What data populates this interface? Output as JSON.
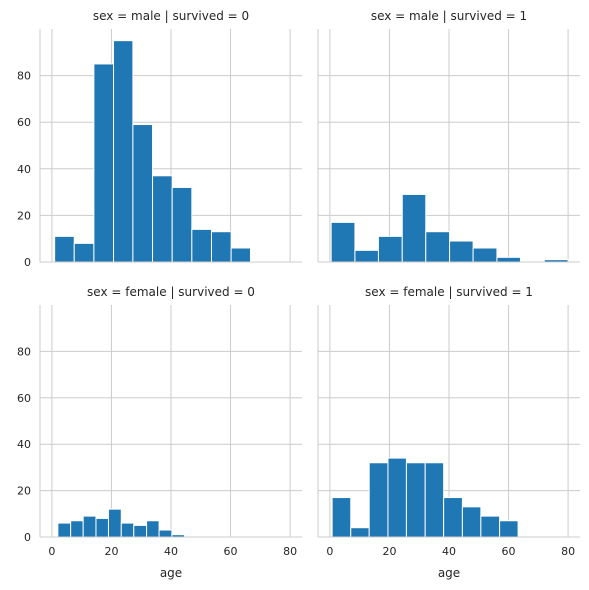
{
  "chart_data": {
    "type": "bar",
    "layout": "2x2 facet grid, shared x and y axes",
    "grid": true,
    "bar_color": "#1f77b4",
    "xlabel": "age",
    "ylabel": "",
    "xlim": [
      -4,
      84
    ],
    "ylim": [
      0,
      100
    ],
    "xticks": [
      0,
      20,
      40,
      60,
      80
    ],
    "yticks": [
      0,
      20,
      40,
      60,
      80
    ],
    "facets": [
      {
        "title": "sex = male | survived = 0",
        "bins": [
          [
            0.92,
            7.5
          ],
          [
            7.5,
            14.1
          ],
          [
            14.1,
            20.7
          ],
          [
            20.7,
            27.2
          ],
          [
            27.2,
            33.8
          ],
          [
            33.8,
            40.4
          ],
          [
            40.4,
            47.0
          ],
          [
            47.0,
            53.6
          ],
          [
            53.6,
            60.2
          ],
          [
            60.2,
            66.7
          ],
          [
            66.7,
            73.3
          ],
          [
            73.3,
            80.0
          ]
        ],
        "values": [
          11,
          8,
          85,
          95,
          59,
          37,
          32,
          14,
          13,
          6,
          0,
          0
        ]
      },
      {
        "title": "sex = male | survived = 1",
        "bins": [
          [
            0.42,
            8.4
          ],
          [
            8.4,
            16.3
          ],
          [
            16.3,
            24.3
          ],
          [
            24.3,
            32.2
          ],
          [
            32.2,
            40.2
          ],
          [
            40.2,
            48.1
          ],
          [
            48.1,
            56.1
          ],
          [
            56.1,
            64.0
          ],
          [
            64.0,
            72.0
          ],
          [
            72.0,
            80.0
          ]
        ],
        "values": [
          17,
          5,
          11,
          29,
          13,
          9,
          6,
          2,
          0,
          1
        ]
      },
      {
        "title": "sex = female | survived = 0",
        "bins": [
          [
            2.0,
            6.3
          ],
          [
            6.3,
            10.5
          ],
          [
            10.5,
            14.8
          ],
          [
            14.8,
            19.0
          ],
          [
            19.0,
            23.3
          ],
          [
            23.3,
            27.5
          ],
          [
            27.5,
            31.8
          ],
          [
            31.8,
            36.0
          ],
          [
            36.0,
            40.3
          ],
          [
            40.3,
            44.5
          ],
          [
            44.5,
            48.8
          ],
          [
            48.8,
            53.0
          ],
          [
            53.0,
            57.3
          ]
        ],
        "values": [
          6,
          7,
          9,
          8,
          12,
          6,
          5,
          7,
          3,
          1,
          0,
          0,
          0
        ]
      },
      {
        "title": "sex = female | survived = 1",
        "bins": [
          [
            0.75,
            7.0
          ],
          [
            7.0,
            13.2
          ],
          [
            13.2,
            19.5
          ],
          [
            19.5,
            25.7
          ],
          [
            25.7,
            32.0
          ],
          [
            32.0,
            38.2
          ],
          [
            38.2,
            44.5
          ],
          [
            44.5,
            50.7
          ],
          [
            50.7,
            57.0
          ],
          [
            57.0,
            63.2
          ]
        ],
        "values": [
          17,
          4,
          32,
          34,
          32,
          32,
          17,
          13,
          9,
          7
        ]
      }
    ]
  }
}
